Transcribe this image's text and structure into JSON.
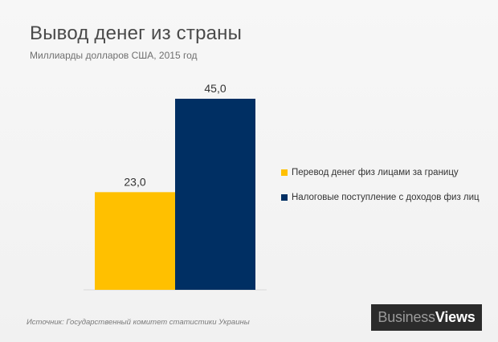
{
  "chart_data": {
    "type": "bar",
    "title": "Вывод денег из страны",
    "subtitle": "Миллиарды долларов США, 2015 год",
    "series": [
      {
        "name": "Перевод денег физ лицами за границу",
        "value": 23.0,
        "label": "23,0",
        "color": "#FFC000"
      },
      {
        "name": "Налоговые поступление с доходов физ лиц",
        "value": 45.0,
        "label": "45,0",
        "color": "#002F63"
      }
    ],
    "ylim": [
      0,
      50
    ],
    "grid": false,
    "legend": "right"
  },
  "footer": {
    "source": "Источник:  Государственный комитет статистики Украины"
  },
  "logo": {
    "part1": "Business",
    "part2": "Views"
  }
}
